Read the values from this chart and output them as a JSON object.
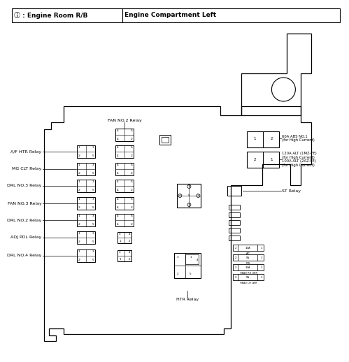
{
  "title_left": "ⓘ : Engine Room R/B",
  "title_right": "Engine Compartment Left",
  "bg_color": "#ffffff",
  "relay_labels_left": [
    "A/F HTR Relay",
    "MG CLT Relay",
    "DRL NO.3 Relay",
    "FAN NO.3 Relay",
    "DRL NO.2 Relay",
    "ADJ PDL Relay",
    "DRL NO.4 Relay"
  ],
  "label_right_1": "60A ABS NO.1\n(for High Current)",
  "label_right_2": "120A ALT (1MZ-FE)\n(for High Current)\n100A ALT (2AZ-FE)\n(for High Current)",
  "label_right_3": "ST Relay",
  "fan_no2_label": "FAN NO.2 Relay",
  "htr_relay_label": "HTR Relay"
}
